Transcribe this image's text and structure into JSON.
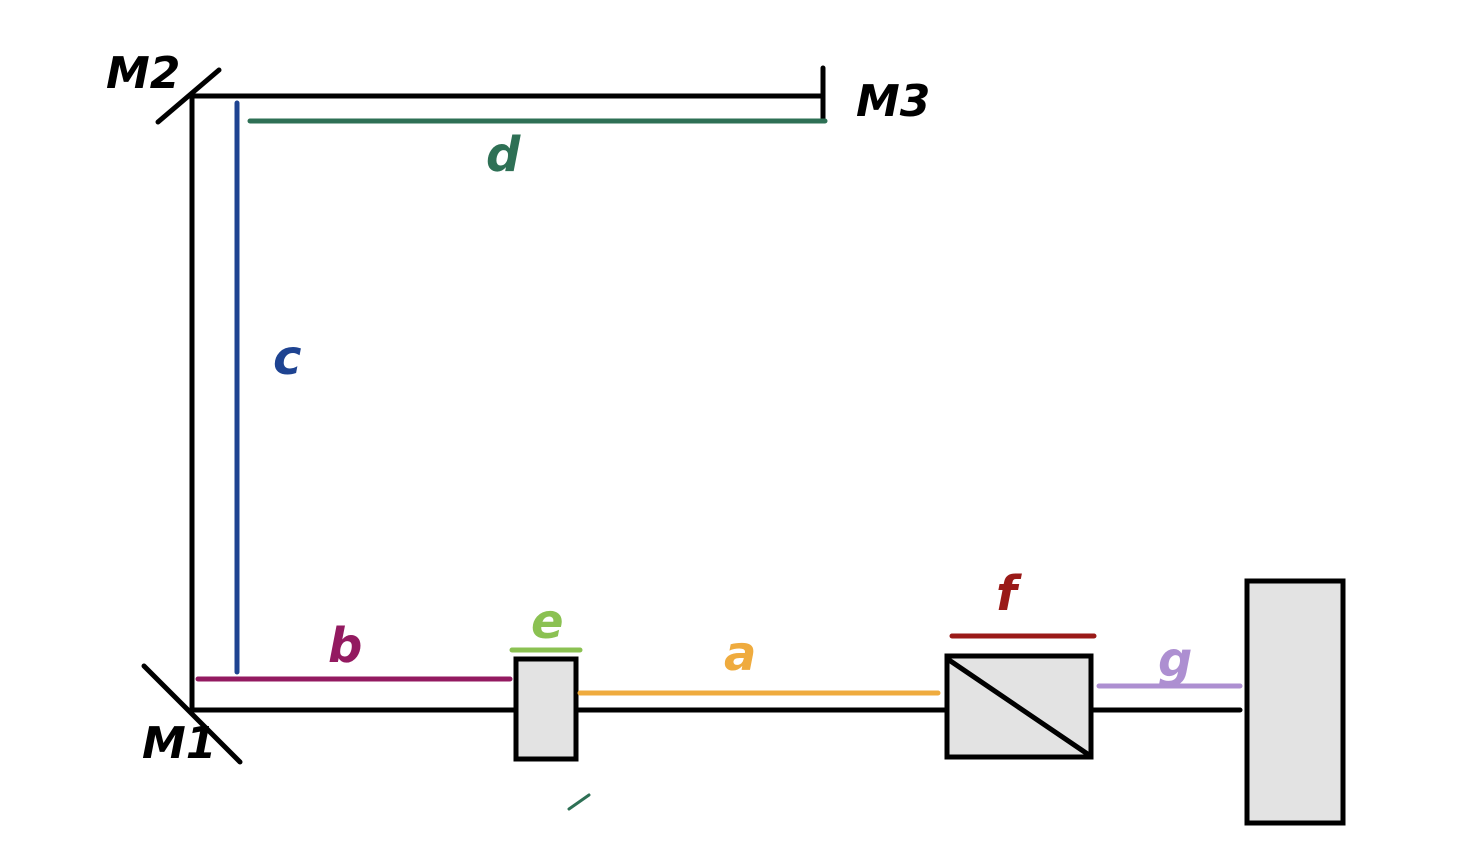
{
  "mirrors": {
    "m1": "M1",
    "m2": "M2",
    "m3": "M3"
  },
  "segments": {
    "a": {
      "label": "a",
      "color": "#efab3e"
    },
    "b": {
      "label": "b",
      "color": "#931a60"
    },
    "c": {
      "label": "c",
      "color": "#1e4391"
    },
    "d": {
      "label": "d",
      "color": "#2e7055"
    },
    "e": {
      "label": "e",
      "color": "#8bc152"
    },
    "f": {
      "label": "f",
      "color": "#9a1a18"
    },
    "g": {
      "label": "g",
      "color": "#ad8fd1"
    }
  }
}
